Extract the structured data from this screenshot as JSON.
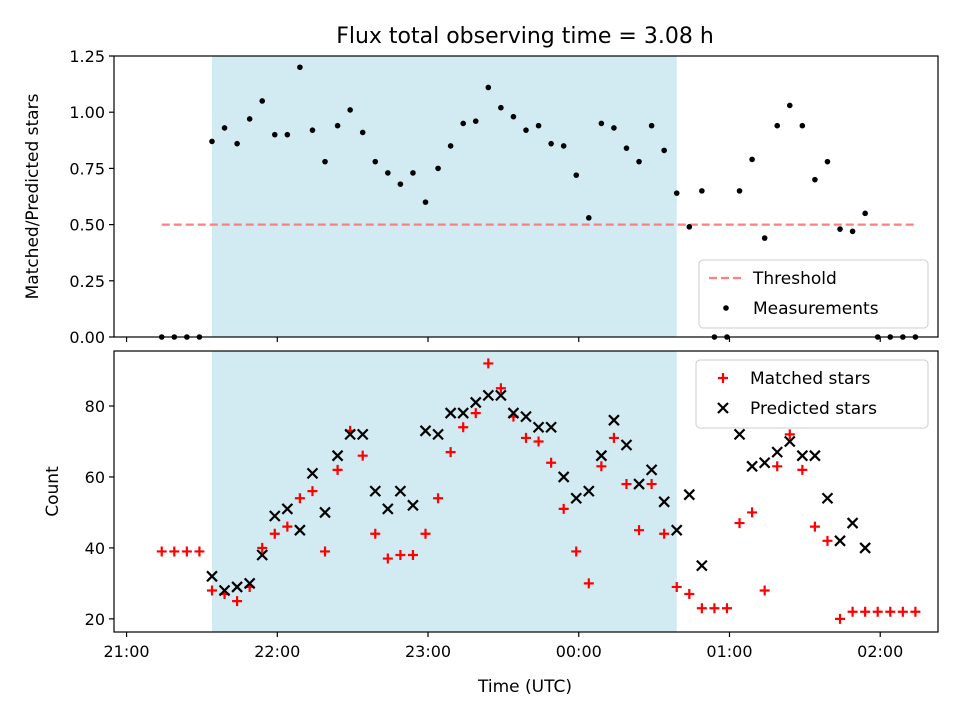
{
  "figure": {
    "title": "Flux total observing time = 3.08 h",
    "xlabel": "Time (UTC)",
    "x_tick_labels": [
      "21:00",
      "22:00",
      "23:00",
      "00:00",
      "01:00",
      "02:00"
    ],
    "shaded_region_color": "#add8e6"
  },
  "chart_data": [
    {
      "type": "scatter",
      "ylabel": "Matched/Predicted stars",
      "ylim": [
        0,
        1.25
      ],
      "y_ticks": [
        "0.00",
        "0.25",
        "0.50",
        "0.75",
        "1.00",
        "1.25"
      ],
      "x_range_minutes": [
        -5,
        323
      ],
      "shaded_region": [
        "21:34",
        "00:39"
      ],
      "legend": {
        "position": "lower-right",
        "entries": [
          "Threshold",
          "Measurements"
        ]
      },
      "threshold": {
        "name": "Threshold",
        "value": 0.5,
        "x_start": "21:14",
        "x_end": "02:14",
        "color": "#ff7f7f",
        "style": "dashed"
      },
      "series": [
        {
          "name": "Measurements",
          "color": "#000000",
          "points": [
            [
              "21:14",
              0.0
            ],
            [
              "21:19",
              0.0
            ],
            [
              "21:24",
              0.0
            ],
            [
              "21:29",
              0.0
            ],
            [
              "21:34",
              0.87
            ],
            [
              "21:39",
              0.93
            ],
            [
              "21:44",
              0.86
            ],
            [
              "21:49",
              0.97
            ],
            [
              "21:54",
              1.05
            ],
            [
              "21:59",
              0.9
            ],
            [
              "22:04",
              0.9
            ],
            [
              "22:09",
              1.2
            ],
            [
              "22:14",
              0.92
            ],
            [
              "22:19",
              0.78
            ],
            [
              "22:24",
              0.94
            ],
            [
              "22:29",
              1.01
            ],
            [
              "22:34",
              0.91
            ],
            [
              "22:39",
              0.78
            ],
            [
              "22:44",
              0.73
            ],
            [
              "22:49",
              0.68
            ],
            [
              "22:54",
              0.73
            ],
            [
              "22:59",
              0.6
            ],
            [
              "23:04",
              0.75
            ],
            [
              "23:09",
              0.85
            ],
            [
              "23:14",
              0.95
            ],
            [
              "23:19",
              0.96
            ],
            [
              "23:24",
              1.11
            ],
            [
              "23:29",
              1.02
            ],
            [
              "23:34",
              0.98
            ],
            [
              "23:39",
              0.92
            ],
            [
              "23:44",
              0.94
            ],
            [
              "23:49",
              0.86
            ],
            [
              "23:54",
              0.85
            ],
            [
              "23:59",
              0.72
            ],
            [
              "00:04",
              0.53
            ],
            [
              "00:09",
              0.95
            ],
            [
              "00:14",
              0.93
            ],
            [
              "00:19",
              0.84
            ],
            [
              "00:24",
              0.78
            ],
            [
              "00:29",
              0.94
            ],
            [
              "00:34",
              0.83
            ],
            [
              "00:39",
              0.64
            ],
            [
              "00:44",
              0.49
            ],
            [
              "00:49",
              0.65
            ],
            [
              "00:54",
              0.0
            ],
            [
              "00:59",
              0.0
            ],
            [
              "01:04",
              0.65
            ],
            [
              "01:09",
              0.79
            ],
            [
              "01:14",
              0.44
            ],
            [
              "01:19",
              0.94
            ],
            [
              "01:24",
              1.03
            ],
            [
              "01:29",
              0.94
            ],
            [
              "01:34",
              0.7
            ],
            [
              "01:39",
              0.78
            ],
            [
              "01:44",
              0.48
            ],
            [
              "01:49",
              0.47
            ],
            [
              "01:54",
              0.55
            ],
            [
              "01:59",
              0.0
            ],
            [
              "02:04",
              0.0
            ],
            [
              "02:09",
              0.0
            ],
            [
              "02:14",
              0.0
            ]
          ]
        }
      ]
    },
    {
      "type": "scatter",
      "ylabel": "Count",
      "ylim": [
        16.3,
        95.5
      ],
      "y_ticks": [
        "20",
        "40",
        "60",
        "80"
      ],
      "x_range_minutes": [
        -5,
        323
      ],
      "shaded_region": [
        "21:34",
        "00:39"
      ],
      "legend": {
        "position": "upper-right",
        "entries": [
          "Matched stars",
          "Predicted stars"
        ]
      },
      "series": [
        {
          "name": "Matched stars",
          "marker": "plus",
          "color": "#ff0000",
          "points": [
            [
              "21:14",
              39
            ],
            [
              "21:19",
              39
            ],
            [
              "21:24",
              39
            ],
            [
              "21:29",
              39
            ],
            [
              "21:34",
              28
            ],
            [
              "21:39",
              27
            ],
            [
              "21:44",
              25
            ],
            [
              "21:49",
              29
            ],
            [
              "21:54",
              40
            ],
            [
              "21:59",
              44
            ],
            [
              "22:04",
              46
            ],
            [
              "22:09",
              54
            ],
            [
              "22:14",
              56
            ],
            [
              "22:19",
              39
            ],
            [
              "22:24",
              62
            ],
            [
              "22:29",
              73
            ],
            [
              "22:34",
              66
            ],
            [
              "22:39",
              44
            ],
            [
              "22:44",
              37
            ],
            [
              "22:49",
              38
            ],
            [
              "22:54",
              38
            ],
            [
              "22:59",
              44
            ],
            [
              "23:04",
              54
            ],
            [
              "23:09",
              67
            ],
            [
              "23:14",
              74
            ],
            [
              "23:19",
              78
            ],
            [
              "23:24",
              92
            ],
            [
              "23:29",
              85
            ],
            [
              "23:34",
              77
            ],
            [
              "23:39",
              71
            ],
            [
              "23:44",
              70
            ],
            [
              "23:49",
              64
            ],
            [
              "23:54",
              51
            ],
            [
              "23:59",
              39
            ],
            [
              "00:04",
              30
            ],
            [
              "00:09",
              63
            ],
            [
              "00:14",
              71
            ],
            [
              "00:19",
              58
            ],
            [
              "00:24",
              45
            ],
            [
              "00:29",
              58
            ],
            [
              "00:34",
              44
            ],
            [
              "00:39",
              29
            ],
            [
              "00:44",
              27
            ],
            [
              "00:49",
              23
            ],
            [
              "00:54",
              23
            ],
            [
              "00:59",
              23
            ],
            [
              "01:04",
              47
            ],
            [
              "01:09",
              50
            ],
            [
              "01:14",
              28
            ],
            [
              "01:19",
              63
            ],
            [
              "01:24",
              72
            ],
            [
              "01:29",
              62
            ],
            [
              "01:34",
              46
            ],
            [
              "01:39",
              42
            ],
            [
              "01:44",
              20
            ],
            [
              "01:49",
              22
            ],
            [
              "01:54",
              22
            ],
            [
              "01:59",
              22
            ],
            [
              "02:04",
              22
            ],
            [
              "02:09",
              22
            ],
            [
              "02:14",
              22
            ]
          ]
        },
        {
          "name": "Predicted stars",
          "marker": "cross",
          "color": "#000000",
          "points": [
            [
              "21:34",
              32
            ],
            [
              "21:39",
              28
            ],
            [
              "21:44",
              29
            ],
            [
              "21:49",
              30
            ],
            [
              "21:54",
              38
            ],
            [
              "21:59",
              49
            ],
            [
              "22:04",
              51
            ],
            [
              "22:09",
              45
            ],
            [
              "22:14",
              61
            ],
            [
              "22:19",
              50
            ],
            [
              "22:24",
              66
            ],
            [
              "22:29",
              72
            ],
            [
              "22:34",
              72
            ],
            [
              "22:39",
              56
            ],
            [
              "22:44",
              51
            ],
            [
              "22:49",
              56
            ],
            [
              "22:54",
              52
            ],
            [
              "22:59",
              73
            ],
            [
              "23:04",
              72
            ],
            [
              "23:09",
              78
            ],
            [
              "23:14",
              78
            ],
            [
              "23:19",
              81
            ],
            [
              "23:24",
              83
            ],
            [
              "23:29",
              83
            ],
            [
              "23:34",
              78
            ],
            [
              "23:39",
              77
            ],
            [
              "23:44",
              74
            ],
            [
              "23:49",
              74
            ],
            [
              "23:54",
              60
            ],
            [
              "23:59",
              54
            ],
            [
              "00:04",
              56
            ],
            [
              "00:09",
              66
            ],
            [
              "00:14",
              76
            ],
            [
              "00:19",
              69
            ],
            [
              "00:24",
              58
            ],
            [
              "00:29",
              62
            ],
            [
              "00:34",
              53
            ],
            [
              "00:39",
              45
            ],
            [
              "00:44",
              55
            ],
            [
              "00:49",
              35
            ],
            [
              "01:04",
              72
            ],
            [
              "01:09",
              63
            ],
            [
              "01:14",
              64
            ],
            [
              "01:19",
              67
            ],
            [
              "01:24",
              70
            ],
            [
              "01:29",
              66
            ],
            [
              "01:34",
              66
            ],
            [
              "01:39",
              54
            ],
            [
              "01:44",
              42
            ],
            [
              "01:49",
              47
            ],
            [
              "01:54",
              40
            ]
          ]
        }
      ]
    }
  ]
}
